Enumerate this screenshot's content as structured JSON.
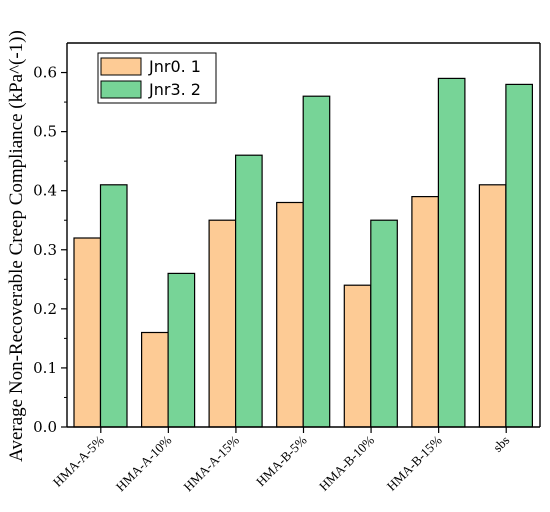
{
  "chart_data": {
    "type": "bar",
    "title": "",
    "xlabel": "",
    "ylabel": "Average Non-Recoverable Creep Compliance (kPa^(-1))",
    "ylim": [
      0,
      0.65
    ],
    "yticks": [
      "0.0",
      "0.1",
      "0.2",
      "0.3",
      "0.4",
      "0.5",
      "0.6"
    ],
    "categories": [
      "HMA-A-5%",
      "HMA-A-10%",
      "HMA-A-15%",
      "HMA-B-5%",
      "HMA-B-10%",
      "HMA-B-15%",
      "sbs"
    ],
    "series": [
      {
        "name": "Jnr0. 1",
        "color": "#fdcb95",
        "values": [
          0.32,
          0.16,
          0.35,
          0.38,
          0.24,
          0.39,
          0.41
        ]
      },
      {
        "name": "Jnr3. 2",
        "color": "#77d497",
        "values": [
          0.41,
          0.26,
          0.46,
          0.56,
          0.35,
          0.59,
          0.58
        ]
      }
    ],
    "legend_position": "top-left",
    "grid": false
  }
}
